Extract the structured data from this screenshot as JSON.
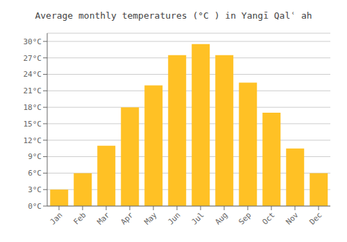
{
  "chart_data": {
    "type": "bar",
    "title": "Average monthly temperatures (°C ) in Yangī Qalʿ ah",
    "categories": [
      "Jan",
      "Feb",
      "Mar",
      "Apr",
      "May",
      "Jun",
      "Jul",
      "Aug",
      "Sep",
      "Oct",
      "Nov",
      "Dec"
    ],
    "values": [
      3,
      6,
      11,
      18,
      22,
      27.5,
      29.5,
      27.5,
      22.5,
      17,
      10.5,
      6
    ],
    "color": "#FFC125",
    "ylim": [
      0,
      31.5
    ],
    "yticks": [
      {
        "value": 0,
        "label": "0°C"
      },
      {
        "value": 3,
        "label": "3°C"
      },
      {
        "value": 6,
        "label": "6°C"
      },
      {
        "value": 9,
        "label": "9°C"
      },
      {
        "value": 12,
        "label": "12°C"
      },
      {
        "value": 15,
        "label": "15°C"
      },
      {
        "value": 18,
        "label": "18°C"
      },
      {
        "value": 21,
        "label": "21°C"
      },
      {
        "value": 24,
        "label": "24°C"
      },
      {
        "value": 27,
        "label": "27°C"
      },
      {
        "value": 30,
        "label": "30°C"
      }
    ],
    "grid": true
  }
}
